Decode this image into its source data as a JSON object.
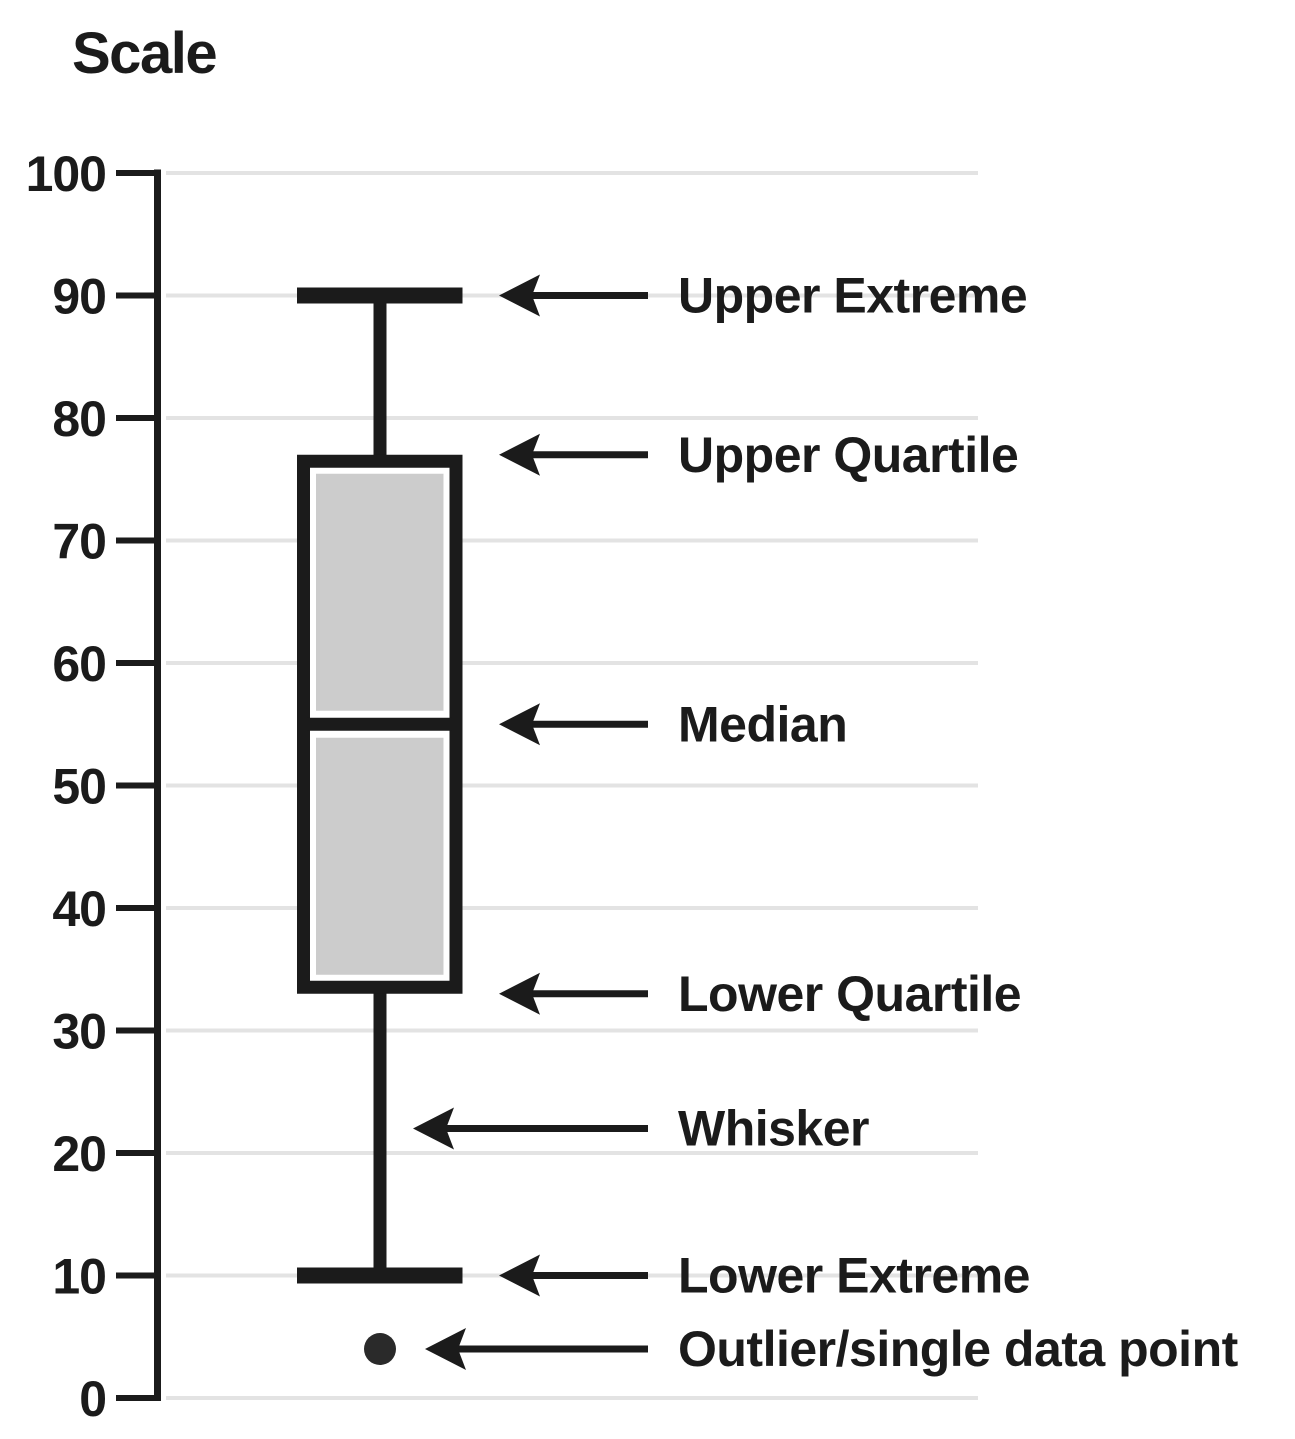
{
  "chart_data": {
    "type": "boxplot",
    "title": "Scale",
    "orientation": "vertical",
    "axis": {
      "min": 0,
      "max": 100,
      "tick_step": 10,
      "ticks": [
        100,
        90,
        80,
        70,
        60,
        50,
        40,
        30,
        20,
        10,
        0
      ]
    },
    "box": {
      "upper_extreme": 90,
      "upper_quartile": 77,
      "median": 55,
      "lower_quartile": 33,
      "lower_extreme": 10,
      "outliers": [
        4
      ]
    },
    "annotations": [
      {
        "label": "Upper Extreme",
        "value": 90,
        "target": "cap"
      },
      {
        "label": "Upper Quartile",
        "value": 77,
        "target": "box-edge"
      },
      {
        "label": "Median",
        "value": 55,
        "target": "box-edge"
      },
      {
        "label": "Lower Quartile",
        "value": 33,
        "target": "box-edge"
      },
      {
        "label": "Whisker",
        "value": 22,
        "target": "stem"
      },
      {
        "label": "Lower Extreme",
        "value": 10,
        "target": "cap"
      },
      {
        "label": "Outlier/single data point",
        "value": 4,
        "target": "point"
      }
    ],
    "grid": true,
    "legend": false,
    "colors": {
      "ink": "#1b1b1b",
      "box_fill": "#cccccc",
      "box_inset": "#ffffff",
      "gridline": "#e3e3e3",
      "outlier": "#2a2a2a",
      "background": "#ffffff"
    }
  }
}
